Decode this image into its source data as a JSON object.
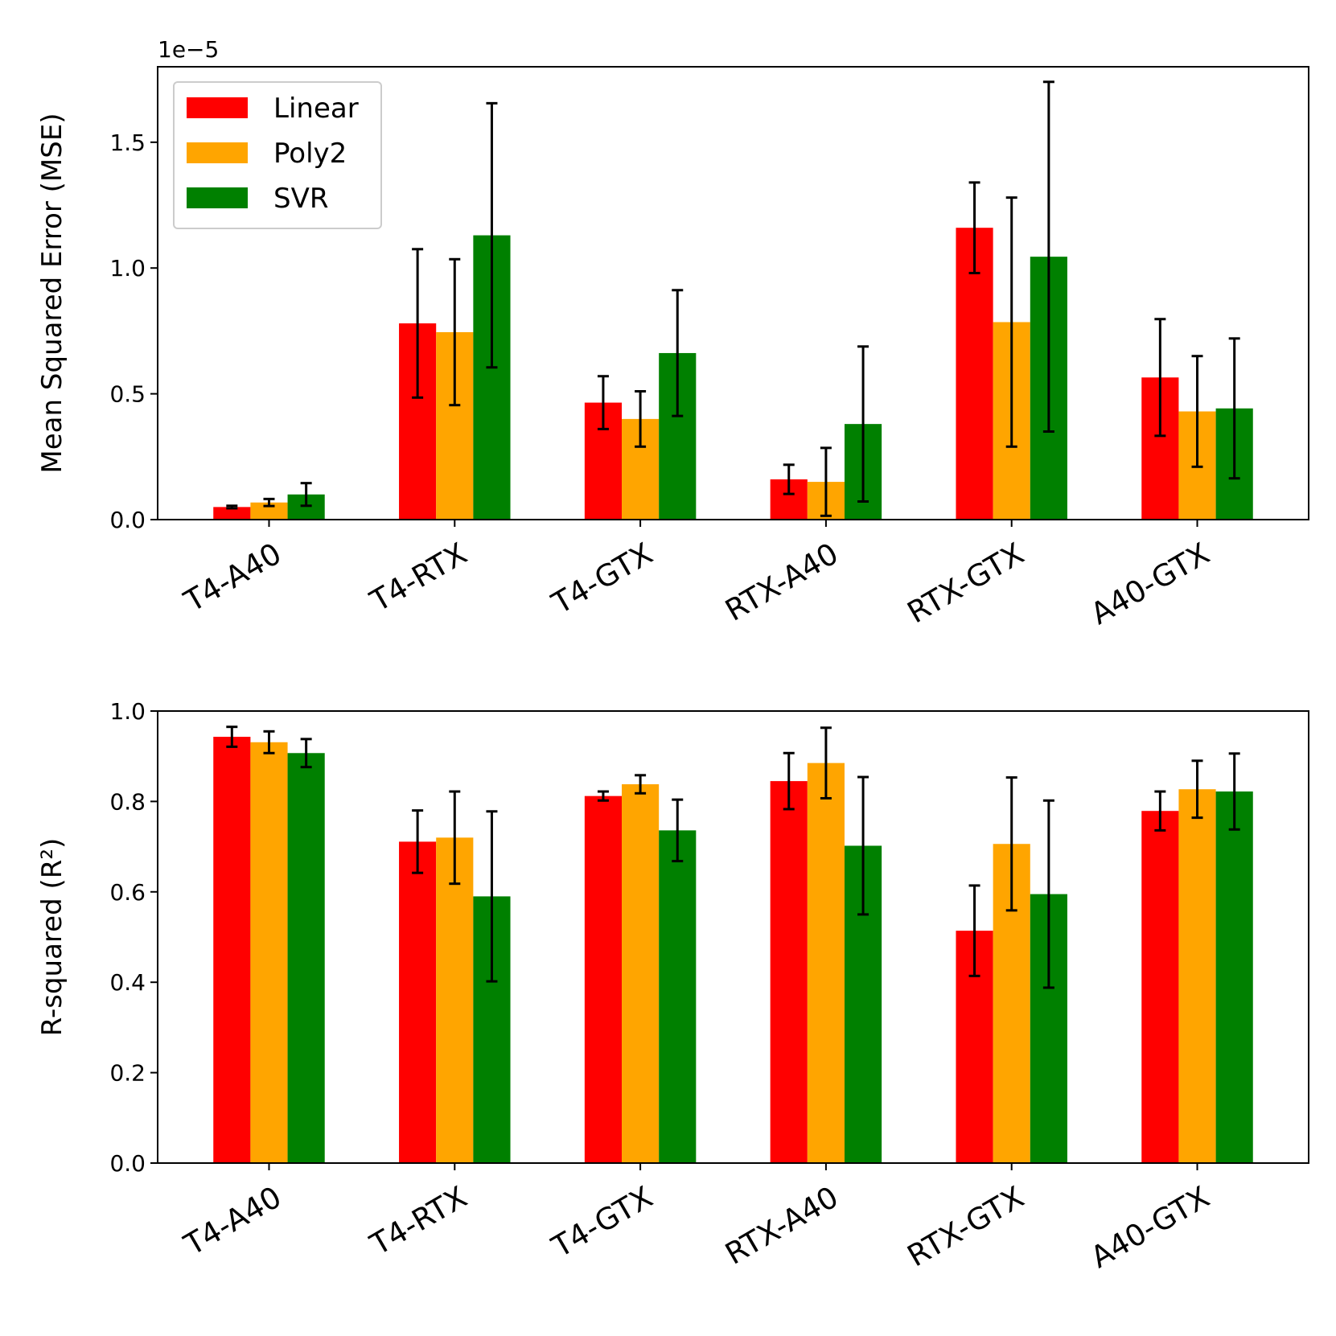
{
  "chart_data": [
    {
      "type": "bar",
      "categories": [
        "T4-A40",
        "T4-RTX",
        "T4-GTX",
        "RTX-A40",
        "RTX-GTX",
        "A40-GTX"
      ],
      "ylabel": "Mean Squared Error (MSE)",
      "offset_label": "1e−5",
      "scale": 1e-05,
      "ylim": [
        0,
        1.8
      ],
      "yticks": [
        0.0,
        0.5,
        1.0,
        1.5
      ],
      "ytick_labels": [
        "0.0",
        "0.5",
        "1.0",
        "1.5"
      ],
      "legend_position": "upper-left",
      "series": [
        {
          "name": "Linear",
          "color": "#ff0000",
          "values": [
            0.05,
            0.78,
            0.465,
            0.16,
            1.16,
            0.565
          ],
          "errors": [
            0.005,
            0.295,
            0.105,
            0.058,
            0.18,
            0.232
          ]
        },
        {
          "name": "Poly2",
          "color": "#ffa500",
          "values": [
            0.068,
            0.745,
            0.4,
            0.15,
            0.785,
            0.43
          ],
          "errors": [
            0.014,
            0.29,
            0.11,
            0.135,
            0.495,
            0.22
          ]
        },
        {
          "name": "SVR",
          "color": "#008000",
          "values": [
            0.1,
            1.13,
            0.662,
            0.38,
            1.045,
            0.442
          ],
          "errors": [
            0.045,
            0.525,
            0.25,
            0.308,
            0.695,
            0.278
          ]
        }
      ]
    },
    {
      "type": "bar",
      "categories": [
        "T4-A40",
        "T4-RTX",
        "T4-GTX",
        "RTX-A40",
        "RTX-GTX",
        "A40-GTX"
      ],
      "ylabel": "R-squared (R²)",
      "ylim": [
        0,
        1.0
      ],
      "yticks": [
        0.0,
        0.2,
        0.4,
        0.6,
        0.8,
        1.0
      ],
      "ytick_labels": [
        "0.0",
        "0.2",
        "0.4",
        "0.6",
        "0.8",
        "1.0"
      ],
      "series": [
        {
          "name": "Linear",
          "color": "#ff0000",
          "values": [
            0.943,
            0.711,
            0.812,
            0.845,
            0.514,
            0.779
          ],
          "errors": [
            0.022,
            0.069,
            0.01,
            0.062,
            0.1,
            0.043
          ]
        },
        {
          "name": "Poly2",
          "color": "#ffa500",
          "values": [
            0.931,
            0.72,
            0.838,
            0.885,
            0.706,
            0.827
          ],
          "errors": [
            0.024,
            0.102,
            0.02,
            0.078,
            0.147,
            0.063
          ]
        },
        {
          "name": "SVR",
          "color": "#008000",
          "values": [
            0.907,
            0.59,
            0.736,
            0.702,
            0.595,
            0.822
          ],
          "errors": [
            0.031,
            0.188,
            0.068,
            0.152,
            0.207,
            0.084
          ]
        }
      ]
    }
  ]
}
